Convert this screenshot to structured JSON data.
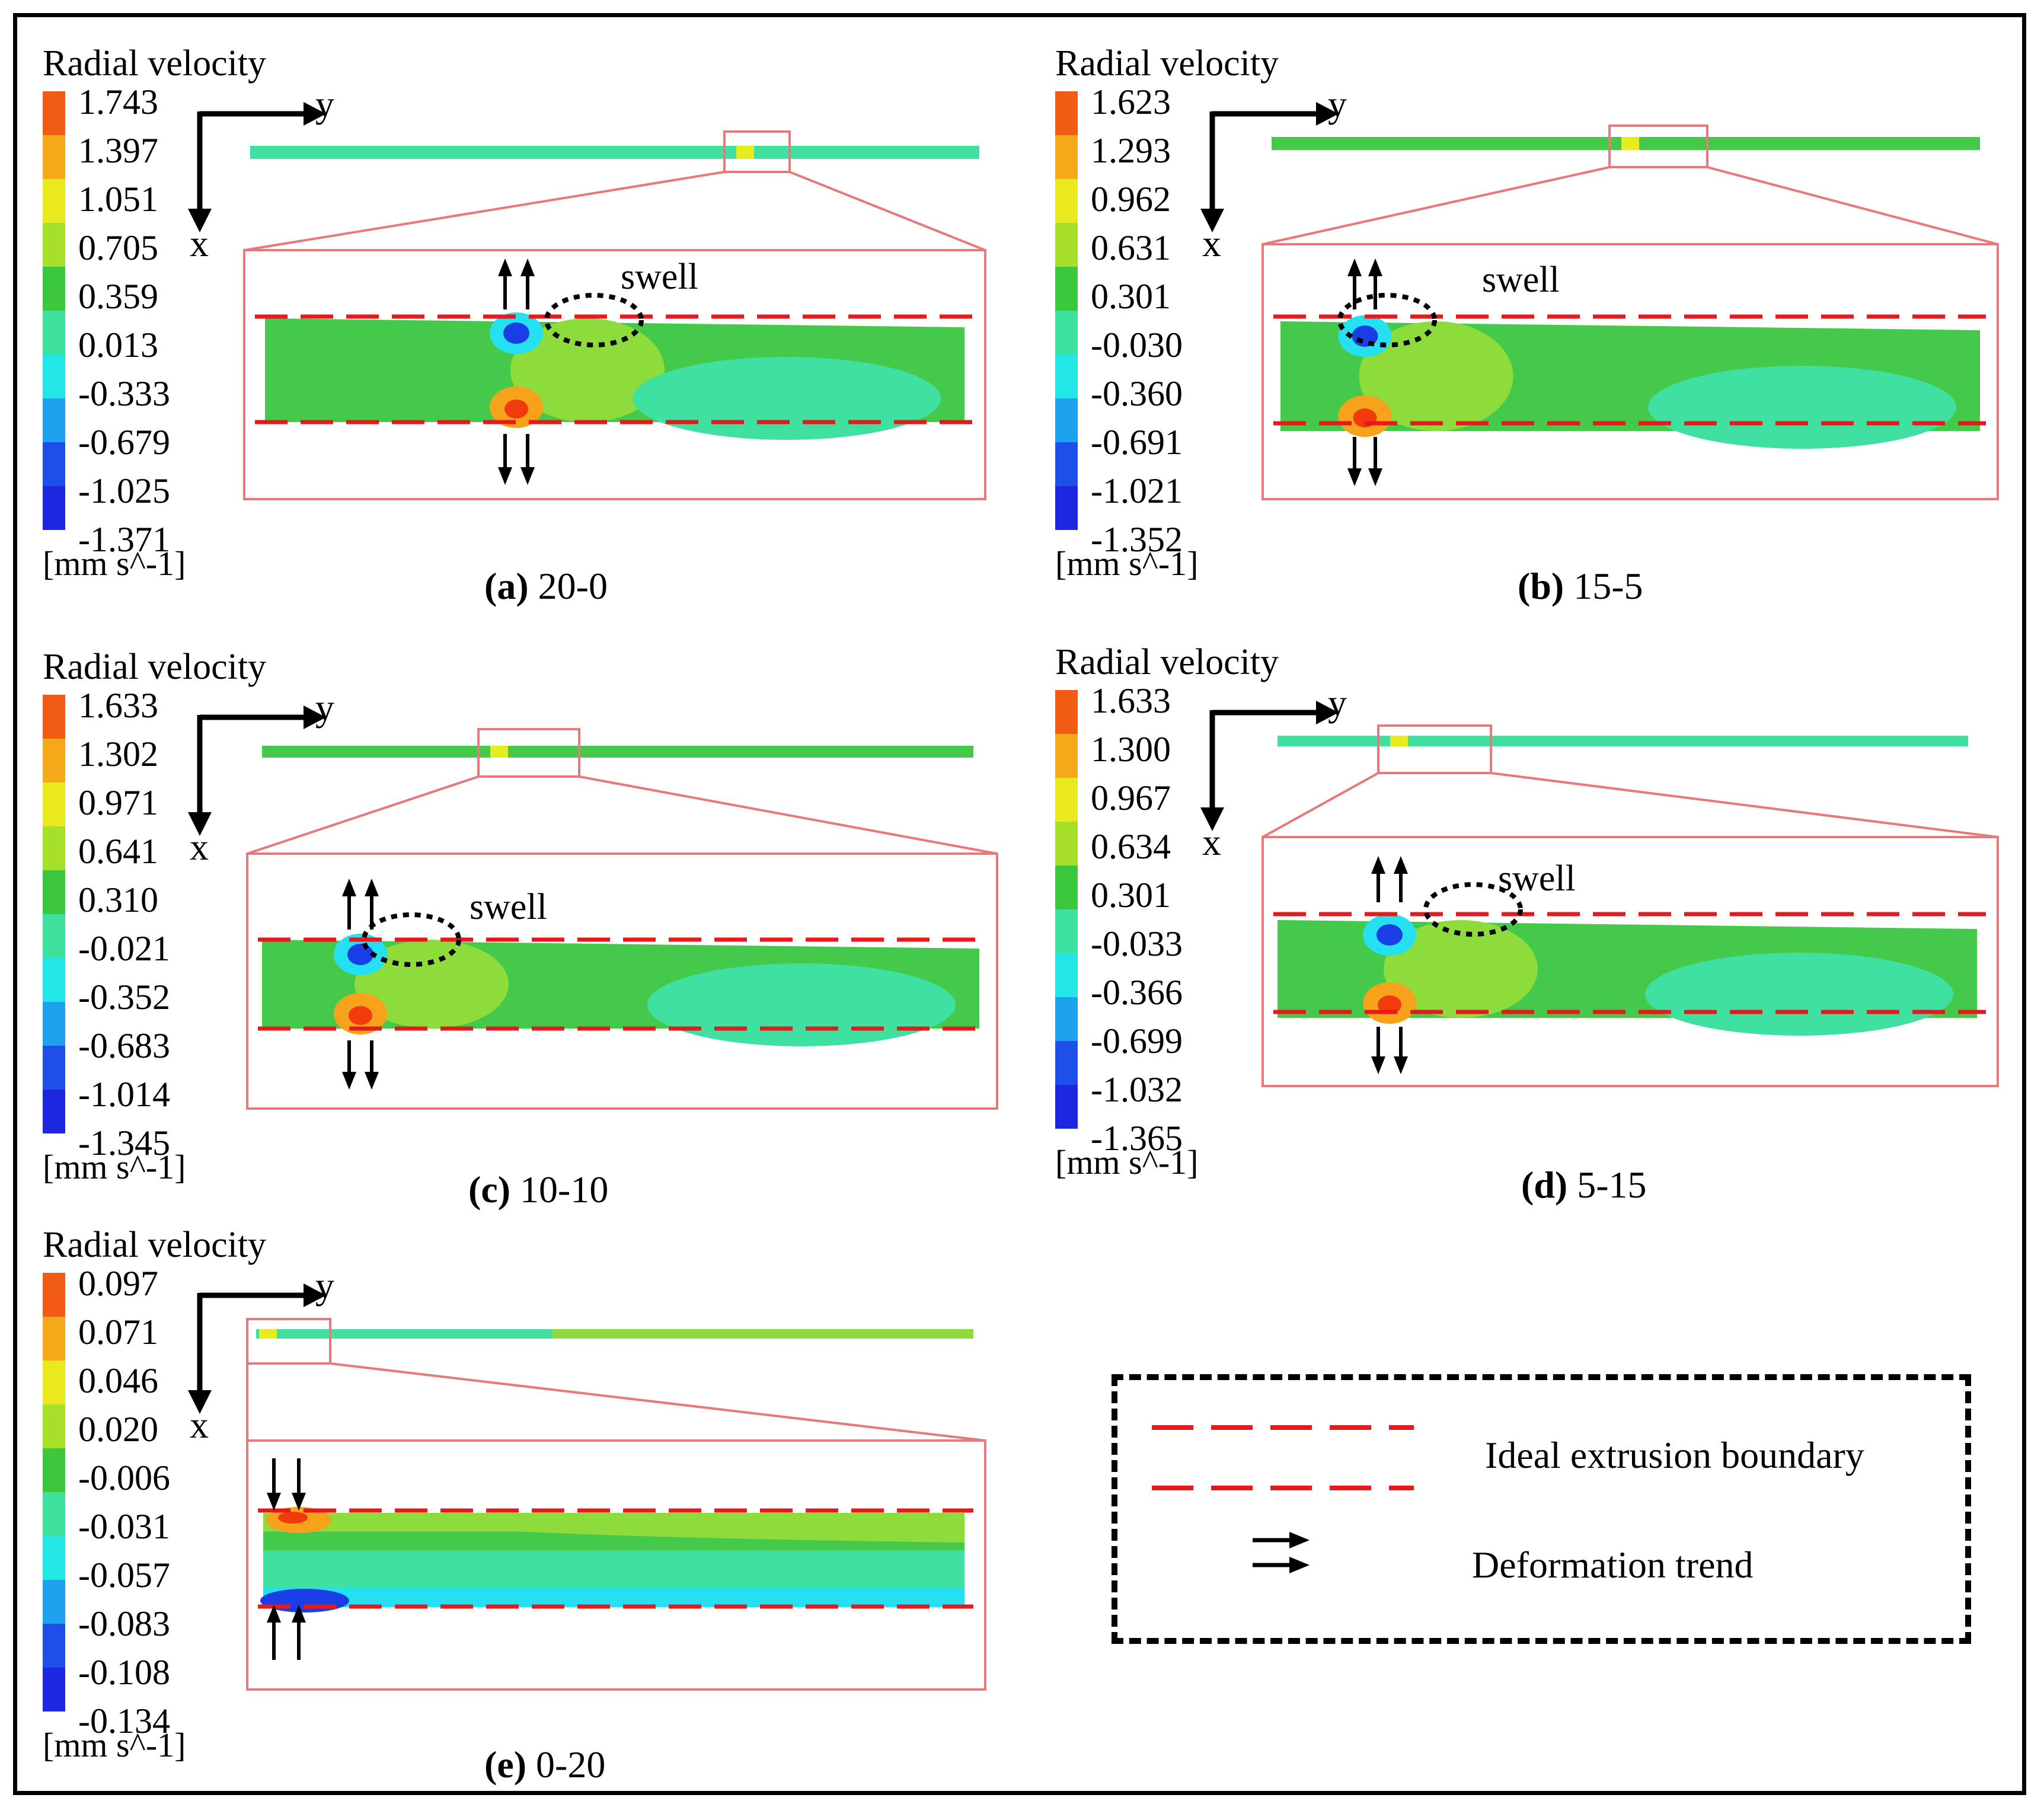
{
  "colors": {
    "frame": "#000000",
    "zoom_box": "#e8787a",
    "ideal_boundary": "#e41a1c",
    "arrow": "#000000",
    "field_green": "#44c94a",
    "field_light_green": "#8edc3c",
    "field_teal": "#3fe0a0",
    "field_cyan": "#24e0f0",
    "field_blue": "#1a3ee6",
    "field_red": "#f23a0c",
    "field_orange": "#f6a21a",
    "field_yellow": "#e6ec1e"
  },
  "colorbar_colors": [
    "#f25b14",
    "#f6a81b",
    "#e9e91d",
    "#a6e02a",
    "#3cc83c",
    "#3ee09e",
    "#23e6e6",
    "#1fa2ee",
    "#1c50e8",
    "#1c28e0"
  ],
  "panels": [
    {
      "id": "a",
      "colorbar": {
        "title": "Radial velocity",
        "labels": [
          "1.743",
          "1.397",
          "1.051",
          "0.705",
          "0.359",
          "0.013",
          "-0.333",
          "-0.679",
          "-1.025",
          "-1.371"
        ],
        "unit": "[mm s^-1]"
      },
      "axes": {
        "horizontal": "y",
        "vertical": "x"
      },
      "annotation": "swell",
      "caption": {
        "letter": "(a)",
        "text": " 20-0"
      }
    },
    {
      "id": "b",
      "colorbar": {
        "title": "Radial velocity",
        "labels": [
          "1.623",
          "1.293",
          "0.962",
          "0.631",
          "0.301",
          "-0.030",
          "-0.360",
          "-0.691",
          "-1.021",
          "-1.352"
        ],
        "unit": "[mm s^-1]"
      },
      "axes": {
        "horizontal": "y",
        "vertical": "x"
      },
      "annotation": "swell",
      "caption": {
        "letter": "(b)",
        "text": " 15-5"
      }
    },
    {
      "id": "c",
      "colorbar": {
        "title": "Radial velocity",
        "labels": [
          "1.633",
          "1.302",
          "0.971",
          "0.641",
          "0.310",
          "-0.021",
          "-0.352",
          "-0.683",
          "-1.014",
          "-1.345"
        ],
        "unit": "[mm s^-1]"
      },
      "axes": {
        "horizontal": "y",
        "vertical": "x"
      },
      "annotation": "swell",
      "caption": {
        "letter": "(c)",
        "text": " 10-10"
      }
    },
    {
      "id": "d",
      "colorbar": {
        "title": "Radial velocity",
        "labels": [
          "1.633",
          "1.300",
          "0.967",
          "0.634",
          "0.301",
          "-0.033",
          "-0.366",
          "-0.699",
          "-1.032",
          "-1.365"
        ],
        "unit": "[mm s^-1]"
      },
      "axes": {
        "horizontal": "y",
        "vertical": "x"
      },
      "annotation": "swell",
      "caption": {
        "letter": "(d)",
        "text": " 5-15"
      }
    },
    {
      "id": "e",
      "colorbar": {
        "title": "Radial velocity",
        "labels": [
          "0.097",
          "0.071",
          "0.046",
          "0.020",
          "-0.006",
          "-0.031",
          "-0.057",
          "-0.083",
          "-0.108",
          "-0.134"
        ],
        "unit": "[mm s^-1]"
      },
      "axes": {
        "horizontal": "y",
        "vertical": "x"
      },
      "annotation": "",
      "caption": {
        "letter": "(e)",
        "text": " 0-20"
      }
    }
  ],
  "legend": {
    "boundary_label": "Ideal extrusion boundary",
    "trend_label": "Deformation trend"
  }
}
